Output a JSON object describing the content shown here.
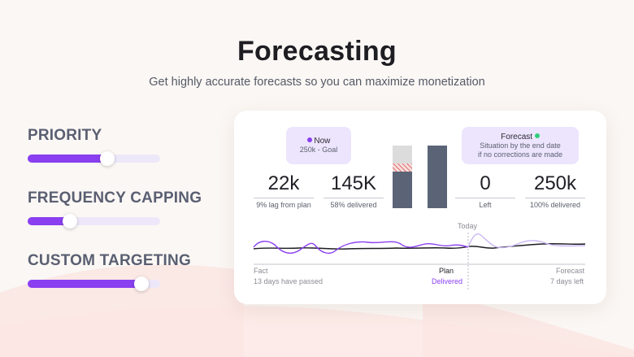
{
  "header": {
    "title": "Forecasting",
    "subtitle": "Get highly accurate forecasts so you can maximize monetization"
  },
  "controls": [
    {
      "label": "PRIORITY",
      "value": 0.6
    },
    {
      "label": "FREQUENCY CAPPING",
      "value": 0.32
    },
    {
      "label": "CUSTOM TARGETING",
      "value": 0.86
    }
  ],
  "colors": {
    "accent": "#8a3ff0",
    "track": "#ede8f9",
    "pill": "#ece5fd",
    "bar_dark": "#5b6377",
    "bar_light": "#dcdcdc",
    "hatch": "#e06b6b",
    "forecast_dot": "#2fcf7a"
  },
  "now_pill": {
    "title": "Now",
    "sub": "250k - Goal"
  },
  "forecast_pill": {
    "title": "Forecast",
    "sub1": "Situation by the end date",
    "sub2": "if no corrections are made"
  },
  "stats": [
    {
      "value": "22k",
      "caption": "9% lag from plan"
    },
    {
      "value": "145K",
      "caption": "58% delivered"
    },
    {
      "value": "0",
      "caption": "Left"
    },
    {
      "value": "250k",
      "caption": "100% delivered"
    }
  ],
  "timeline": {
    "today": "Today",
    "fact": "Fact",
    "fact_sub": "13 days have passed",
    "plan": "Plan",
    "plan_sub": "Delivered",
    "forecast": "Forecast",
    "forecast_sub": "7 days left"
  }
}
